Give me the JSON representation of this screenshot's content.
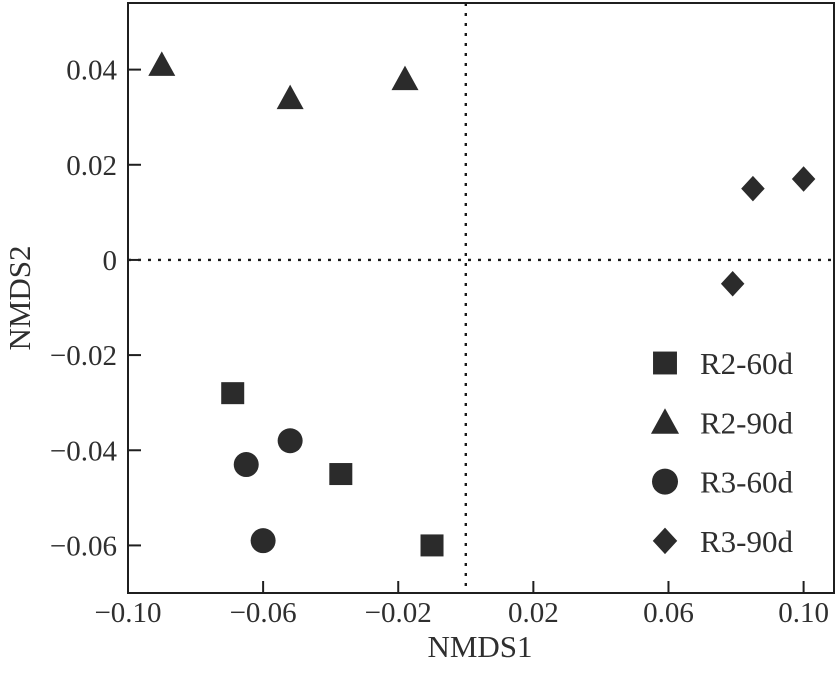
{
  "figure": {
    "background": "#ffffff",
    "marker_color": "#2b2b2b",
    "axis_color": "#1f1f1f",
    "text_color": "#2f2f2f"
  },
  "chart_data": {
    "type": "scatter",
    "title": "",
    "xlabel": "NMDS1",
    "ylabel": "NMDS2",
    "xlim": [
      -0.1,
      0.109
    ],
    "ylim": [
      -0.07,
      0.054
    ],
    "grid": false,
    "x_ticks": [
      -0.1,
      -0.06,
      -0.02,
      0.02,
      0.06,
      0.1
    ],
    "x_tick_labels": [
      "−0.10",
      "−0.06",
      "−0.02",
      "0.02",
      "0.06",
      "0.10"
    ],
    "y_ticks": [
      0.04,
      0.02,
      0,
      -0.02,
      -0.04,
      -0.06
    ],
    "y_tick_labels": [
      "0.04",
      "0.02",
      "0",
      "−0.02",
      "−0.04",
      "−0.06"
    ],
    "reference_lines": [
      {
        "axis": "vertical",
        "x": 0,
        "style": "dotted"
      },
      {
        "axis": "horizontal",
        "y": 0,
        "style": "dotted"
      }
    ],
    "legend_position": "inside-lower-right",
    "series": [
      {
        "name": "R2-60d",
        "marker": "square",
        "points": [
          [
            -0.069,
            -0.028
          ],
          [
            -0.037,
            -0.045
          ],
          [
            -0.01,
            -0.06
          ]
        ]
      },
      {
        "name": "R2-90d",
        "marker": "triangle",
        "points": [
          [
            -0.09,
            0.041
          ],
          [
            -0.052,
            0.034
          ],
          [
            -0.018,
            0.038
          ]
        ]
      },
      {
        "name": "R3-60d",
        "marker": "circle",
        "points": [
          [
            -0.065,
            -0.043
          ],
          [
            -0.052,
            -0.038
          ],
          [
            -0.06,
            -0.059
          ]
        ]
      },
      {
        "name": "R3-90d",
        "marker": "diamond",
        "points": [
          [
            0.079,
            -0.005
          ],
          [
            0.085,
            0.015
          ],
          [
            0.1,
            0.017
          ]
        ]
      }
    ]
  }
}
